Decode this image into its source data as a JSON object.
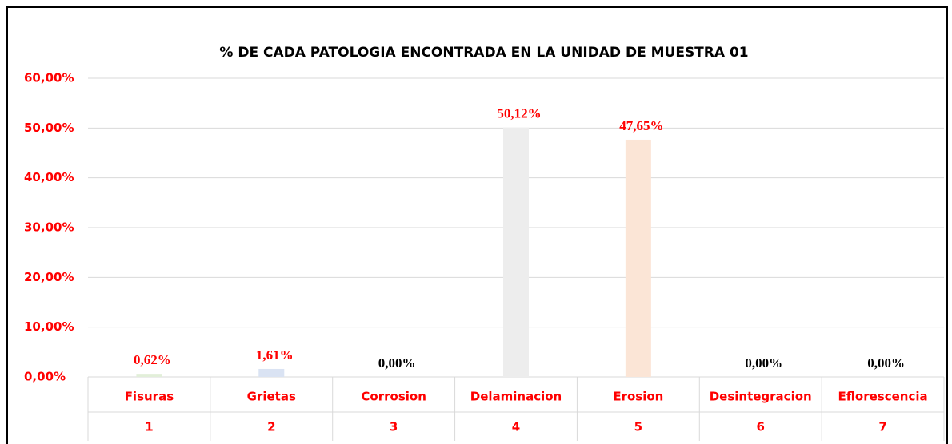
{
  "chart_data": {
    "type": "bar",
    "title": "% DE CADA PATOLOGIA ENCONTRADA EN LA UNIDAD DE MUESTRA 01",
    "categories": [
      "Fisuras",
      "Grietas",
      "Corrosion",
      "Delaminacion",
      "Erosion",
      "Desintegracion",
      "Eflorescencia"
    ],
    "category_numbers": [
      "1",
      "2",
      "3",
      "4",
      "5",
      "6",
      "7"
    ],
    "values": [
      0.62,
      1.61,
      0,
      50.12,
      47.65,
      0,
      0
    ],
    "value_labels": [
      "0,62%",
      "1,61%",
      "0,00%",
      "50,12%",
      "47,65%",
      "0,00%",
      "0,00%"
    ],
    "colors": [
      "#e2efd9",
      "#dae3f3",
      "#f2f2f2",
      "#ededed",
      "#fbe5d6",
      "#fff2cc",
      "#deebf7"
    ],
    "value_label_colors": [
      "#ff0000",
      "#ff0000",
      "#000000",
      "#ff0000",
      "#ff0000",
      "#000000",
      "#000000"
    ],
    "ylim": [
      0,
      60
    ],
    "yticks": [
      {
        "value": 0,
        "label": "0,00%"
      },
      {
        "value": 10,
        "label": "10,00%"
      },
      {
        "value": 20,
        "label": "20,00%"
      },
      {
        "value": 30,
        "label": "30,00%"
      },
      {
        "value": 40,
        "label": "40,00%"
      },
      {
        "value": 50,
        "label": "50,00%"
      },
      {
        "value": 60,
        "label": "60,00%"
      }
    ],
    "grid": true
  }
}
